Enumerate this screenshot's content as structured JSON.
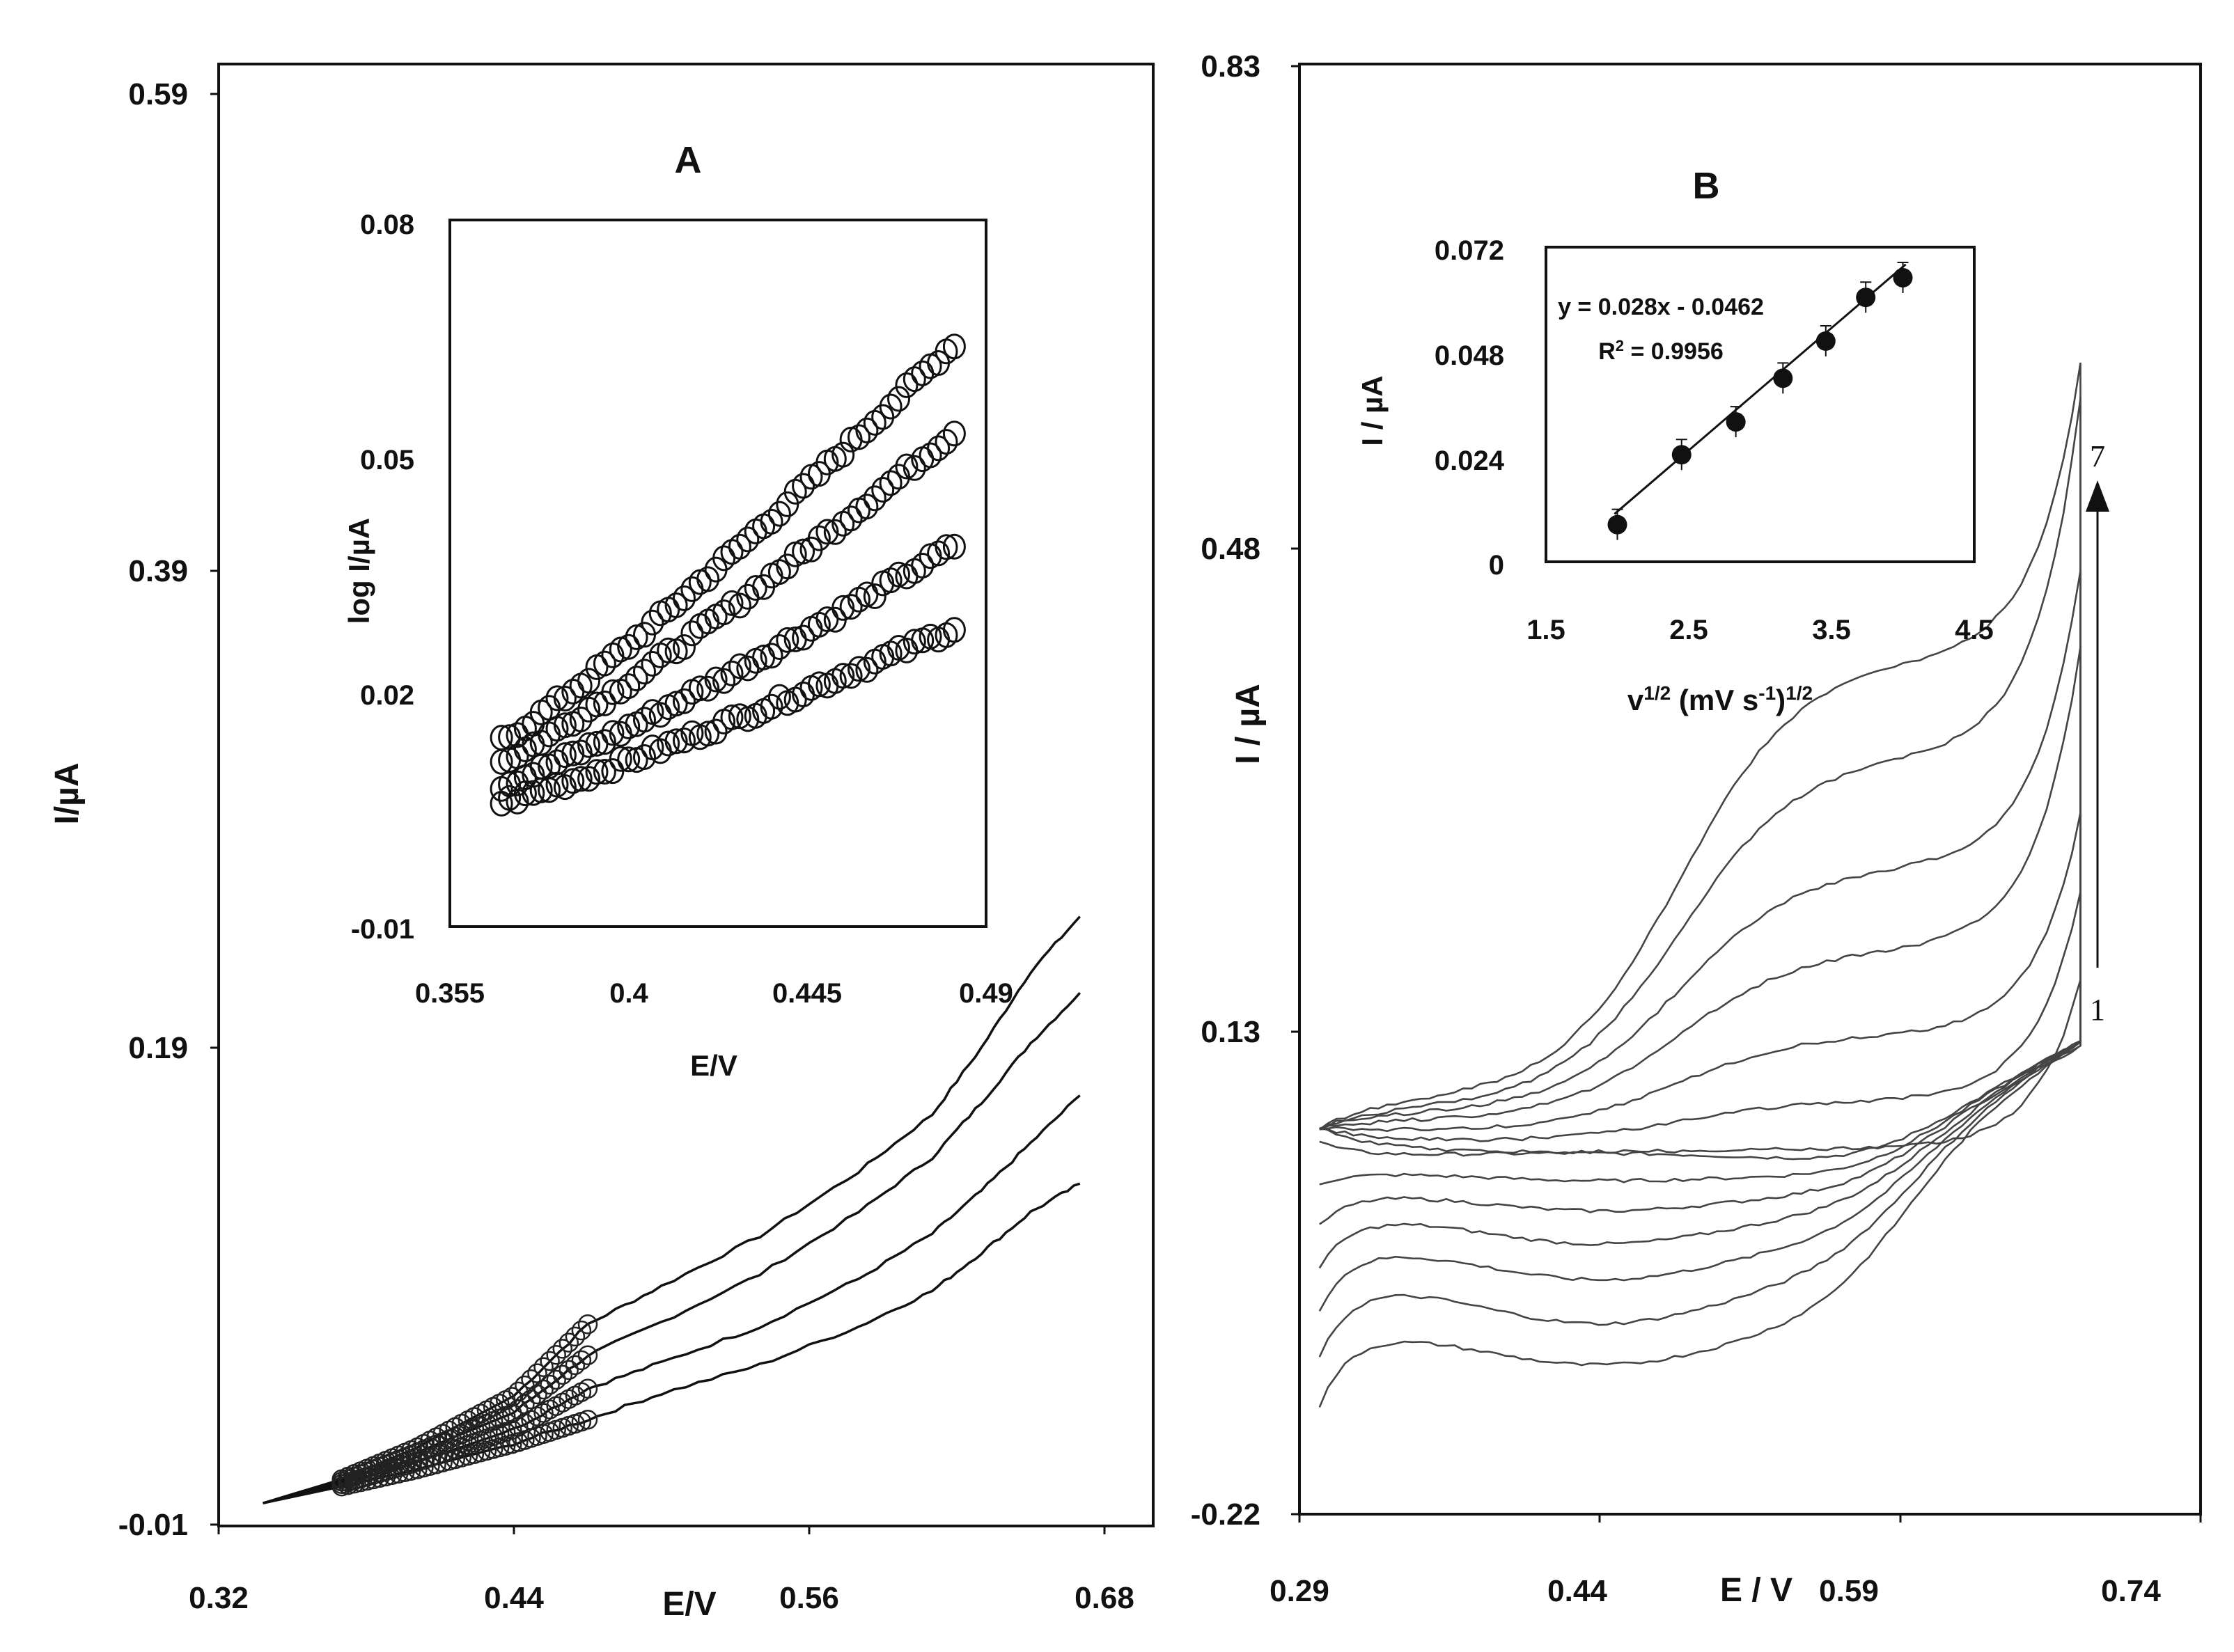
{
  "panels": {
    "A": {
      "label": "A",
      "x_label": "E/V",
      "y_label": "I/µA",
      "x_ticks": [
        "0.32",
        "0.44",
        "0.56",
        "0.68"
      ],
      "y_ticks": [
        "-0.01",
        "0.19",
        "0.39",
        "0.59"
      ],
      "inset": {
        "x_label": "E/V",
        "y_label": "log I/µA",
        "x_ticks": [
          "0.355",
          "0.4",
          "0.445",
          "0.49"
        ],
        "y_ticks": [
          "-0.01",
          "0.02",
          "0.05",
          "0.08"
        ]
      }
    },
    "B": {
      "label": "B",
      "x_label": "E / V",
      "y_label": "I / µA",
      "x_ticks": [
        "0.29",
        "0.44",
        "0.59",
        "0.74"
      ],
      "y_ticks": [
        "-0.22",
        "0.13",
        "0.48",
        "0.83"
      ],
      "curve_start_label": "1",
      "curve_end_label": "7",
      "inset": {
        "x_label_base": "v",
        "x_label_sup1": "1/2",
        "x_label_mid": " (mV s",
        "x_label_sup2": "-1",
        "x_label_end": ")",
        "x_label_sup3": "1/2",
        "y_label": "I / µA",
        "x_ticks": [
          "1.5",
          "2.5",
          "3.5",
          "4.5"
        ],
        "y_ticks": [
          "0",
          "0.024",
          "0.048",
          "0.072"
        ],
        "equation": "y = 0.028x - 0.0462",
        "r2_prefix": "R",
        "r2_sup": "2",
        "r2_value": " = 0.9956"
      }
    }
  },
  "chart_data": [
    {
      "panel": "A",
      "type": "line",
      "xlabel": "E/V",
      "ylabel": "I/µA",
      "xlim": [
        0.32,
        0.7
      ],
      "ylim": [
        -0.01,
        0.6
      ],
      "series": [
        {
          "x": [
            0.338,
            0.37,
            0.4,
            0.44,
            0.47,
            0.5,
            0.54,
            0.58,
            0.61,
            0.63,
            0.65,
            0.67
          ],
          "y": [
            -0.001,
            0.009,
            0.022,
            0.044,
            0.074,
            0.09,
            0.111,
            0.138,
            0.162,
            0.19,
            0.222,
            0.245
          ]
        },
        {
          "x": [
            0.338,
            0.37,
            0.4,
            0.44,
            0.47,
            0.5,
            0.54,
            0.58,
            0.61,
            0.63,
            0.65,
            0.67
          ],
          "y": [
            -0.001,
            0.008,
            0.02,
            0.037,
            0.061,
            0.075,
            0.095,
            0.121,
            0.144,
            0.167,
            0.192,
            0.213
          ]
        },
        {
          "x": [
            0.338,
            0.37,
            0.4,
            0.44,
            0.47,
            0.5,
            0.54,
            0.58,
            0.61,
            0.63,
            0.65,
            0.67
          ],
          "y": [
            -0.001,
            0.007,
            0.016,
            0.03,
            0.047,
            0.058,
            0.073,
            0.093,
            0.112,
            0.13,
            0.15,
            0.17
          ]
        },
        {
          "x": [
            0.338,
            0.37,
            0.4,
            0.44,
            0.47,
            0.5,
            0.54,
            0.58,
            0.61,
            0.63,
            0.65,
            0.67
          ],
          "y": [
            -0.001,
            0.006,
            0.013,
            0.024,
            0.034,
            0.045,
            0.057,
            0.073,
            0.088,
            0.104,
            0.121,
            0.133
          ]
        }
      ]
    },
    {
      "panel": "A-inset",
      "type": "scatter",
      "xlabel": "E/V",
      "ylabel": "log I/µA",
      "xlim": [
        0.355,
        0.49
      ],
      "ylim": [
        -0.01,
        0.08
      ],
      "x_range": [
        0.368,
        0.482
      ],
      "series": [
        {
          "y_start": 0.0137,
          "y_end": 0.0643
        },
        {
          "y_start": 0.011,
          "y_end": 0.053
        },
        {
          "y_start": 0.008,
          "y_end": 0.0385
        },
        {
          "y_start": 0.0058,
          "y_end": 0.028
        }
      ]
    },
    {
      "panel": "B",
      "type": "line",
      "xlabel": "E / V",
      "ylabel": "I / µA",
      "xlim": [
        0.29,
        0.74
      ],
      "ylim": [
        -0.22,
        0.83
      ],
      "x_start": 0.3,
      "x_end": 0.68,
      "curves": [
        {
          "id": "1",
          "start_cathodic": 0.05,
          "plateau_cathodic": 0.04,
          "valley_cathodic": 0.042,
          "anodic_base": 0.042,
          "peak_anodic": 0.045,
          "end": 0.167
        },
        {
          "id": "2",
          "start_cathodic": 0.02,
          "plateau_cathodic": 0.028,
          "valley_cathodic": 0.022,
          "anodic_base": 0.05,
          "peak_anodic": 0.08,
          "end": 0.232
        },
        {
          "id": "3",
          "start_cathodic": -0.01,
          "plateau_cathodic": 0.014,
          "valley_cathodic": 0.0,
          "anodic_base": 0.058,
          "peak_anodic": 0.128,
          "end": 0.288
        },
        {
          "id": "4",
          "start_cathodic": -0.04,
          "plateau_cathodic": -0.002,
          "valley_cathodic": -0.024,
          "anodic_base": 0.066,
          "peak_anodic": 0.19,
          "end": 0.41
        },
        {
          "id": "5",
          "start_cathodic": -0.07,
          "plateau_cathodic": -0.024,
          "valley_cathodic": -0.05,
          "anodic_base": 0.072,
          "peak_anodic": 0.25,
          "end": 0.465
        },
        {
          "id": "6",
          "start_cathodic": -0.105,
          "plateau_cathodic": -0.05,
          "valley_cathodic": -0.082,
          "anodic_base": 0.076,
          "peak_anodic": 0.33,
          "end": 0.59
        },
        {
          "id": "7",
          "start_cathodic": -0.14,
          "plateau_cathodic": -0.085,
          "valley_cathodic": -0.112,
          "anodic_base": 0.082,
          "peak_anodic": 0.4,
          "end": 0.615
        }
      ]
    },
    {
      "panel": "B-inset",
      "type": "scatter",
      "xlabel": "v1/2 (mV s-1)1/2",
      "ylabel": "I / µA",
      "xlim": [
        1.5,
        4.5
      ],
      "ylim": [
        0,
        0.072
      ],
      "x": [
        2.0,
        2.45,
        2.83,
        3.16,
        3.46,
        3.74,
        4.0
      ],
      "y": [
        0.0085,
        0.0245,
        0.032,
        0.042,
        0.0505,
        0.0605,
        0.065
      ],
      "fit": {
        "slope": 0.028,
        "intercept": -0.0462,
        "r2": 0.9956
      }
    }
  ]
}
